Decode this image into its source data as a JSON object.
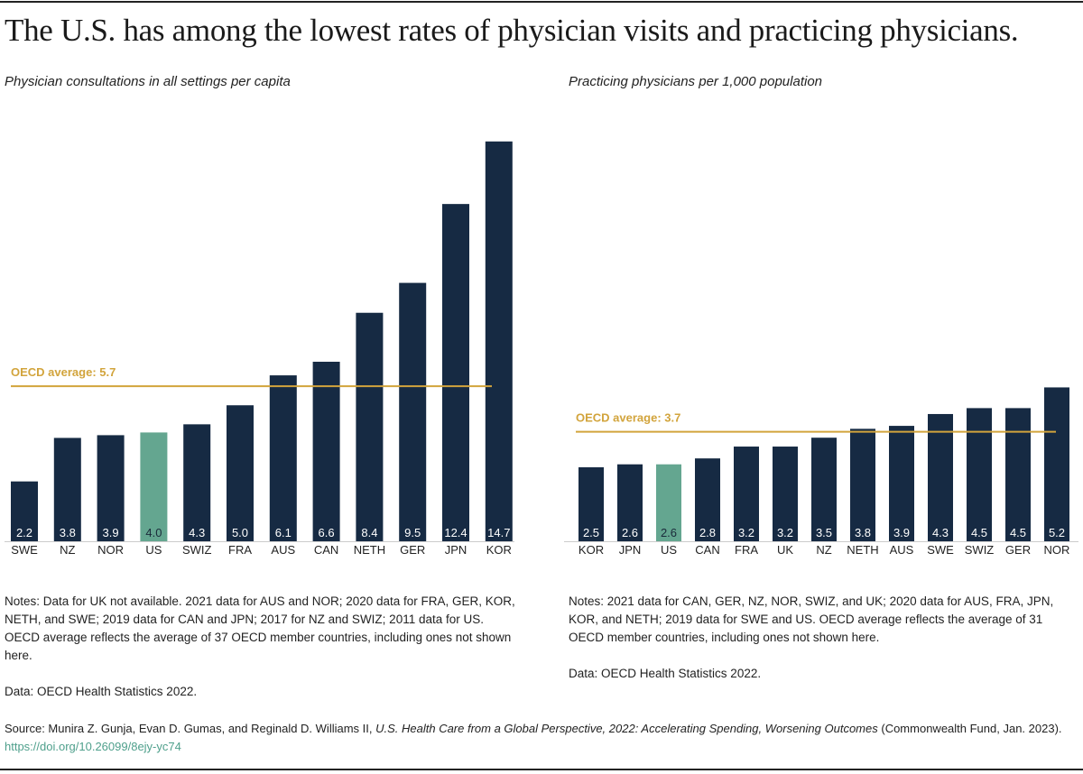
{
  "title": "The U.S. has among the lowest rates of physician visits and practicing physicians.",
  "colors": {
    "bar": "#162a43",
    "highlight": "#64a690",
    "average_line": "#d2a43c",
    "link": "#4fa08c"
  },
  "chart_data": [
    {
      "type": "bar",
      "title": "Physician consultations in all settings per capita",
      "categories": [
        "SWE",
        "NZ",
        "NOR",
        "US",
        "SWIZ",
        "FRA",
        "AUS",
        "CAN",
        "NETH",
        "GER",
        "JPN",
        "KOR"
      ],
      "values": [
        2.2,
        3.8,
        3.9,
        4.0,
        4.3,
        5.0,
        6.1,
        6.6,
        8.4,
        9.5,
        12.4,
        14.7
      ],
      "highlight": "US",
      "average": {
        "label": "OECD average: 5.7",
        "value": 5.7
      },
      "notes": "Notes: Data for UK not available. 2021 data for AUS and NOR; 2020 data for FRA, GER, KOR, NETH, and SWE; 2019 data for CAN and JPN; 2017 for NZ and SWIZ; 2011 data for US. OECD average reflects the average of 37 OECD member countries, including ones not shown here.",
      "data_source": "Data: OECD Health Statistics 2022."
    },
    {
      "type": "bar",
      "title": "Practicing physicians per 1,000 population",
      "categories": [
        "KOR",
        "JPN",
        "US",
        "CAN",
        "FRA",
        "UK",
        "NZ",
        "NETH",
        "AUS",
        "SWE",
        "SWIZ",
        "GER",
        "NOR"
      ],
      "values": [
        2.5,
        2.6,
        2.6,
        2.8,
        3.2,
        3.2,
        3.5,
        3.8,
        3.9,
        4.3,
        4.5,
        4.5,
        5.2
      ],
      "highlight": "US",
      "average": {
        "label": "OECD average: 3.7",
        "value": 3.7
      },
      "notes": "Notes: 2021 data for CAN, GER, NZ, NOR, SWIZ, and UK; 2020 data for AUS, FRA, JPN, KOR, and NETH; 2019 data for SWE and US. OECD average reflects the average of 31 OECD member countries, including ones not shown here.",
      "data_source": "Data: OECD Health Statistics 2022."
    }
  ],
  "source": {
    "prefix": "Source: Munira Z. Gunja, Evan D. Gumas, and Reginald D. Williams II, ",
    "publication": "U.S. Health Care from a Global Perspective, 2022: Accelerating Spending, Worsening Outcomes",
    "suffix": " (Commonwealth Fund, Jan. 2023). ",
    "link": "https://doi.org/10.26099/8ejy-yc74"
  }
}
